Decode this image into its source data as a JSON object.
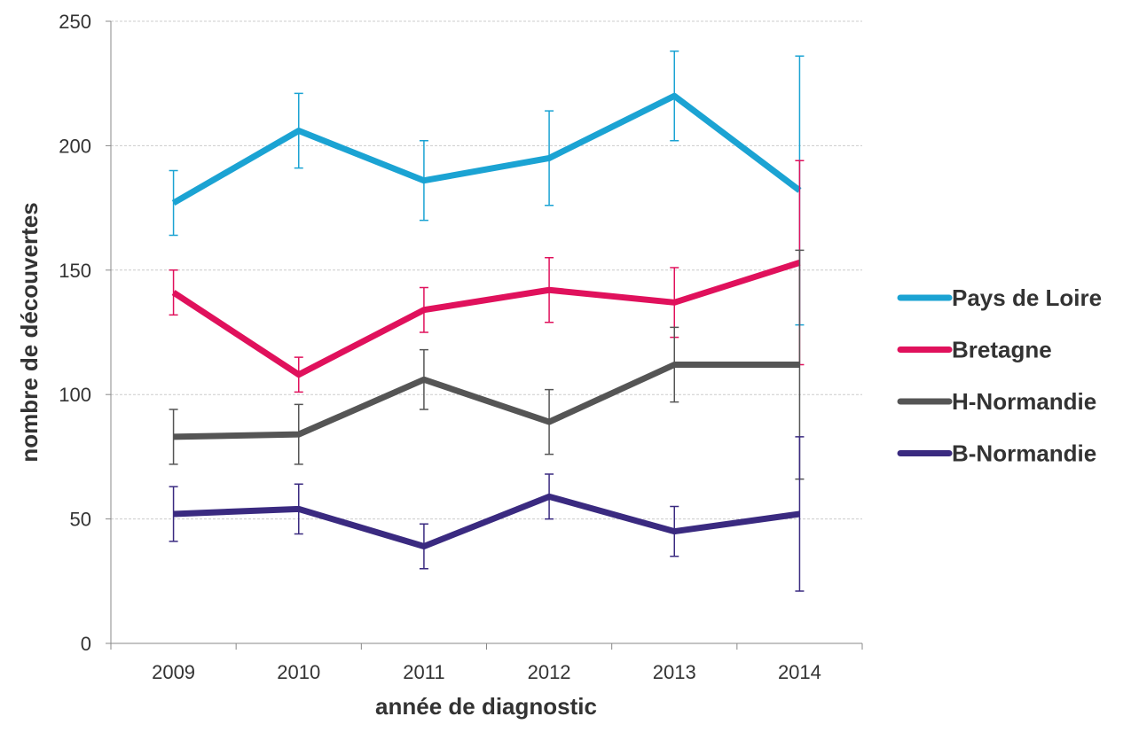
{
  "chart_data": {
    "type": "line",
    "x_label": "année de diagnostic",
    "y_label": "nombre de découvertes",
    "categories": [
      "2009",
      "2010",
      "2011",
      "2012",
      "2013",
      "2014"
    ],
    "series": [
      {
        "name": "Pays de Loire",
        "color": "#1ba3d3",
        "values": [
          177,
          206,
          186,
          195,
          220,
          182
        ],
        "errors": [
          13,
          15,
          16,
          19,
          18,
          54
        ]
      },
      {
        "name": "Bretagne",
        "color": "#e0115c",
        "values": [
          141,
          108,
          134,
          142,
          137,
          153
        ],
        "errors": [
          9,
          7,
          9,
          13,
          14,
          41
        ]
      },
      {
        "name": "H-Normandie",
        "color": "#555555",
        "values": [
          83,
          84,
          106,
          89,
          112,
          112
        ],
        "errors": [
          11,
          12,
          12,
          13,
          15,
          46
        ]
      },
      {
        "name": "B-Normandie",
        "color": "#3a2a80",
        "values": [
          52,
          54,
          39,
          59,
          45,
          52
        ],
        "errors": [
          11,
          10,
          9,
          9,
          10,
          31
        ]
      }
    ],
    "ylim": [
      0,
      250
    ],
    "yticks": [
      0,
      50,
      100,
      150,
      200,
      250
    ],
    "grid": true,
    "legend": "right"
  }
}
